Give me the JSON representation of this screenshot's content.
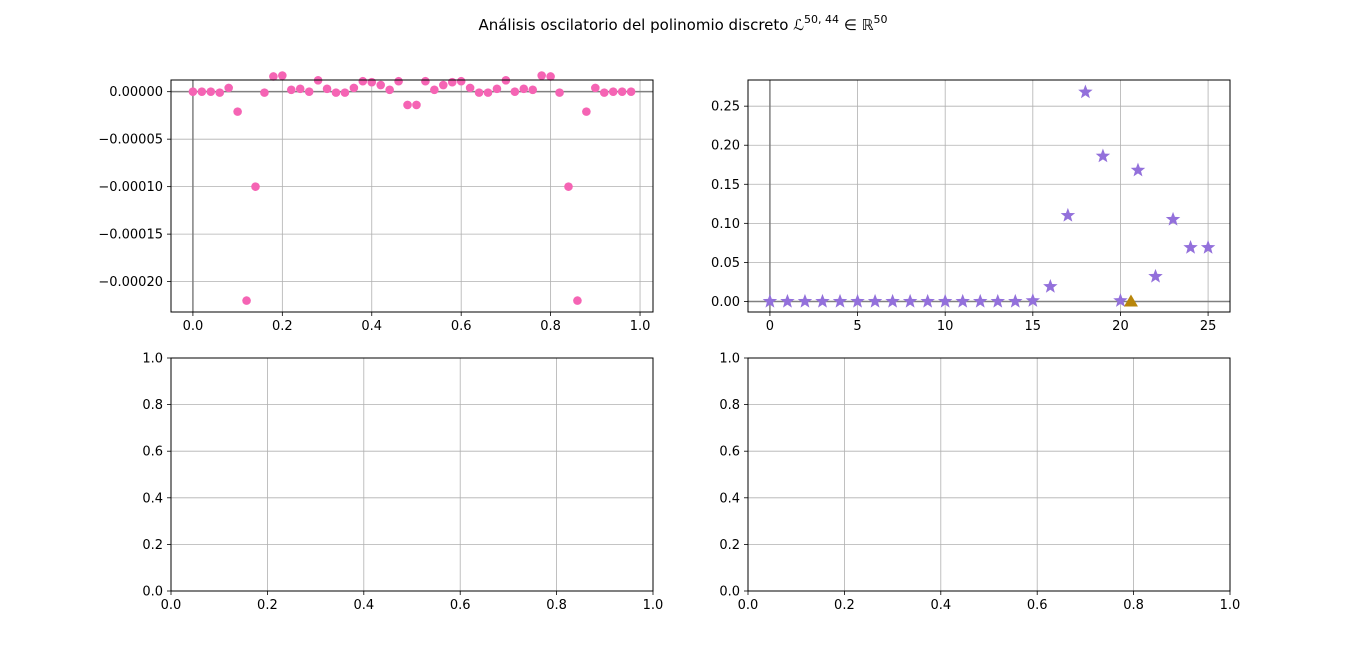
{
  "title_parts": {
    "prefix": "Análisis oscilatorio del polinomio discreto ",
    "L": "ℒ",
    "L_sup": "50, 44",
    "in": " ∈ ",
    "R": "ℝ",
    "R_sup": "50"
  },
  "colors": {
    "pink": "#f564b4",
    "purple": "#9370db",
    "gold": "#b8860b",
    "grid": "#b0b0b0",
    "refline": "#808080"
  },
  "chart_data": [
    {
      "type": "scatter",
      "marker": "circle",
      "color": "#f564b4",
      "xlim": [
        -0.049,
        1.029
      ],
      "ylim": [
        -0.000232,
        1.23e-05
      ],
      "xticks": [
        0.0,
        0.2,
        0.4,
        0.6,
        0.8,
        1.0
      ],
      "xtick_labels": [
        "0.0",
        "0.2",
        "0.4",
        "0.6",
        "0.8",
        "1.0"
      ],
      "yticks": [
        0.0,
        -5e-05,
        -0.0001,
        -0.00015,
        -0.0002
      ],
      "ytick_labels": [
        "0.00000",
        "−0.00005",
        "−0.00010",
        "−0.00015",
        "−0.00020"
      ],
      "grid": true,
      "reference_lines": {
        "x": 0,
        "y": 0
      },
      "x": [
        0.0,
        0.02,
        0.04,
        0.06,
        0.08,
        0.1,
        0.12,
        0.14,
        0.16,
        0.18,
        0.2,
        0.22,
        0.24,
        0.26,
        0.28,
        0.3,
        0.32,
        0.34,
        0.36,
        0.38,
        0.4,
        0.42,
        0.44,
        0.46,
        0.48,
        0.5,
        0.52,
        0.54,
        0.56,
        0.58,
        0.6,
        0.62,
        0.64,
        0.66,
        0.68,
        0.7,
        0.72,
        0.74,
        0.76,
        0.78,
        0.8,
        0.82,
        0.84,
        0.86,
        0.88,
        0.9,
        0.92,
        0.94,
        0.96,
        0.98
      ],
      "y": [
        0.0,
        0.0,
        0.0,
        -1e-06,
        4e-06,
        -2.1e-05,
        -0.00022,
        -0.0001,
        -1e-06,
        1.6e-05,
        1.7e-05,
        2e-06,
        3e-06,
        0.0,
        1.2e-05,
        3e-06,
        -1e-06,
        -1e-06,
        4e-06,
        1.1e-05,
        1e-05,
        7e-06,
        2e-06,
        1.1e-05,
        -1.4e-05,
        -1.4e-05,
        1.1e-05,
        2e-06,
        7e-06,
        1e-05,
        1.1e-05,
        4e-06,
        -1e-06,
        -1e-06,
        3e-06,
        1.2e-05,
        0.0,
        3e-06,
        2e-06,
        1.7e-05,
        1.6e-05,
        -1e-06,
        -0.0001,
        -0.00022,
        -2.1e-05,
        4e-06,
        -1e-06,
        0.0,
        0.0,
        0.0
      ]
    },
    {
      "type": "scatter",
      "marker": "star",
      "color": "#9370db",
      "xlim": [
        -1.25,
        26.25
      ],
      "ylim": [
        -0.0135,
        0.2835
      ],
      "xticks": [
        0,
        5,
        10,
        15,
        20,
        25
      ],
      "xtick_labels": [
        "0",
        "5",
        "10",
        "15",
        "20",
        "25"
      ],
      "yticks": [
        0.0,
        0.05,
        0.1,
        0.15,
        0.2,
        0.25
      ],
      "ytick_labels": [
        "0.00",
        "0.05",
        "0.10",
        "0.15",
        "0.20",
        "0.25"
      ],
      "grid": true,
      "reference_lines": {
        "x": 0,
        "y": 0
      },
      "x": [
        0,
        1,
        2,
        3,
        4,
        5,
        6,
        7,
        8,
        9,
        10,
        11,
        12,
        13,
        14,
        15,
        16,
        17,
        18,
        19,
        20,
        21,
        22,
        23,
        24,
        25
      ],
      "y": [
        0.0,
        0.0,
        0.0,
        0.0,
        0.0,
        0.0,
        0.0,
        0.0,
        0.0,
        0.0,
        0.0,
        0.0,
        0.0,
        0.0,
        0.0,
        0.001,
        0.019,
        0.11,
        0.268,
        0.186,
        0.001,
        0.168,
        0.032,
        0.105,
        0.069,
        0.069
      ],
      "extra_point": {
        "marker": "triangle",
        "color": "#b8860b",
        "x": 20.6,
        "y": 0.0
      }
    },
    {
      "type": "scatter",
      "empty": true,
      "xlim": [
        0,
        1
      ],
      "ylim": [
        0,
        1
      ],
      "xticks": [
        0.0,
        0.2,
        0.4,
        0.6,
        0.8,
        1.0
      ],
      "xtick_labels": [
        "0.0",
        "0.2",
        "0.4",
        "0.6",
        "0.8",
        "1.0"
      ],
      "yticks": [
        0.0,
        0.2,
        0.4,
        0.6,
        0.8,
        1.0
      ],
      "ytick_labels": [
        "0.0",
        "0.2",
        "0.4",
        "0.6",
        "0.8",
        "1.0"
      ],
      "grid": true
    },
    {
      "type": "scatter",
      "empty": true,
      "xlim": [
        0,
        1
      ],
      "ylim": [
        0,
        1
      ],
      "xticks": [
        0.0,
        0.2,
        0.4,
        0.6,
        0.8,
        1.0
      ],
      "xtick_labels": [
        "0.0",
        "0.2",
        "0.4",
        "0.6",
        "0.8",
        "1.0"
      ],
      "yticks": [
        0.0,
        0.2,
        0.4,
        0.6,
        0.8,
        1.0
      ],
      "ytick_labels": [
        "0.0",
        "0.2",
        "0.4",
        "0.6",
        "0.8",
        "1.0"
      ],
      "grid": true
    }
  ]
}
